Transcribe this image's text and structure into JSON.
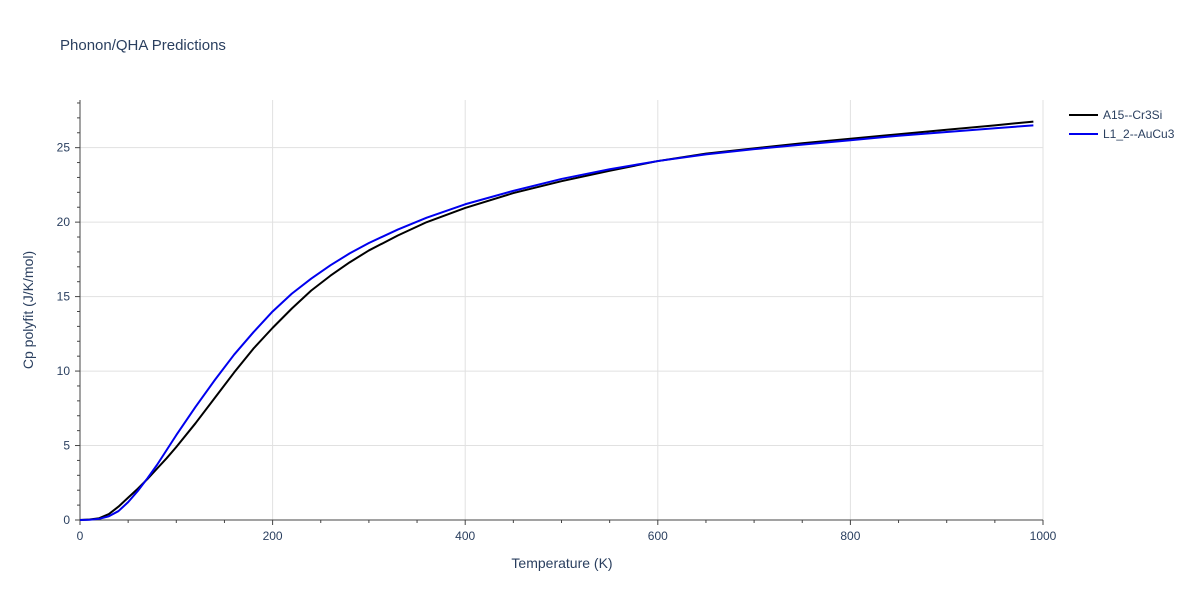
{
  "chart_data": {
    "type": "line",
    "title": "Phonon/QHA Predictions",
    "xlabel": "Temperature (K)",
    "ylabel": "Cp polyfit (J/K/mol)",
    "xlim": [
      0,
      1000
    ],
    "ylim": [
      0,
      28.2
    ],
    "xticks": [
      0,
      200,
      400,
      600,
      800,
      1000
    ],
    "yticks": [
      0,
      5,
      10,
      15,
      20,
      25
    ],
    "grid": true,
    "legend_position": "top-right",
    "series": [
      {
        "name": "A15--Cr3Si",
        "color": "#000000",
        "x": [
          0,
          10,
          20,
          30,
          40,
          50,
          60,
          70,
          80,
          90,
          100,
          120,
          140,
          160,
          180,
          200,
          220,
          240,
          260,
          280,
          300,
          330,
          360,
          400,
          450,
          500,
          550,
          600,
          650,
          700,
          750,
          800,
          850,
          900,
          950,
          990
        ],
        "y": [
          0,
          0.03,
          0.12,
          0.4,
          0.9,
          1.5,
          2.1,
          2.75,
          3.45,
          4.15,
          4.9,
          6.5,
          8.2,
          9.9,
          11.5,
          12.9,
          14.2,
          15.4,
          16.4,
          17.3,
          18.1,
          19.1,
          20.0,
          20.95,
          21.95,
          22.75,
          23.45,
          24.1,
          24.6,
          24.95,
          25.3,
          25.6,
          25.9,
          26.2,
          26.5,
          26.75
        ]
      },
      {
        "name": "L1_2--AuCu3",
        "color": "#0000ee",
        "x": [
          0,
          10,
          20,
          30,
          40,
          50,
          60,
          70,
          80,
          90,
          100,
          120,
          140,
          160,
          180,
          200,
          220,
          240,
          260,
          280,
          300,
          330,
          360,
          400,
          450,
          500,
          550,
          600,
          650,
          700,
          750,
          800,
          850,
          900,
          950,
          990
        ],
        "y": [
          0,
          0.02,
          0.08,
          0.25,
          0.6,
          1.2,
          1.95,
          2.8,
          3.7,
          4.7,
          5.7,
          7.6,
          9.4,
          11.1,
          12.6,
          14.0,
          15.2,
          16.2,
          17.1,
          17.9,
          18.6,
          19.5,
          20.3,
          21.2,
          22.1,
          22.9,
          23.55,
          24.1,
          24.55,
          24.9,
          25.2,
          25.5,
          25.8,
          26.05,
          26.3,
          26.5
        ]
      }
    ]
  }
}
